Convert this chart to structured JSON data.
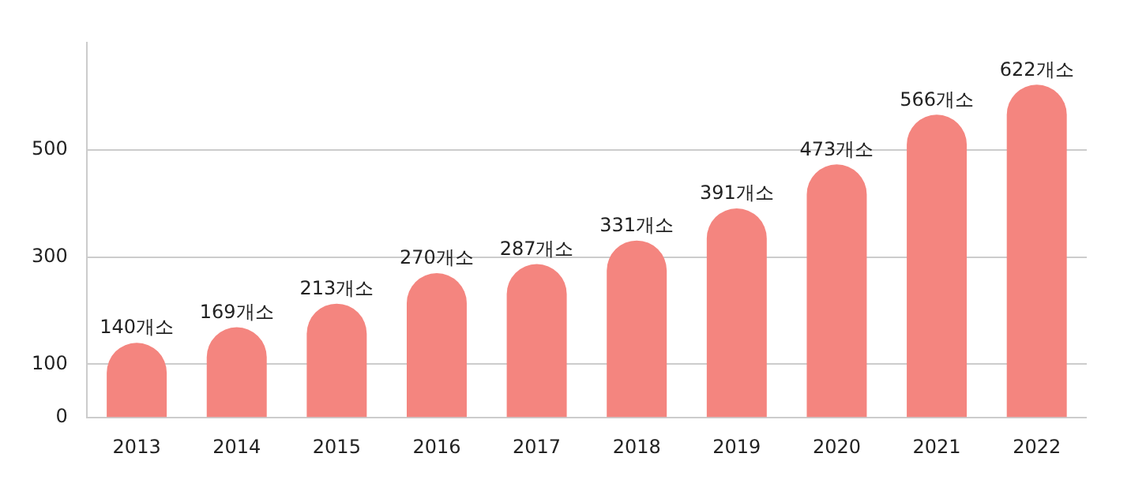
{
  "chart_data": {
    "type": "bar",
    "categories": [
      "2013",
      "2014",
      "2015",
      "2016",
      "2017",
      "2018",
      "2019",
      "2020",
      "2021",
      "2022"
    ],
    "values": [
      140,
      169,
      213,
      270,
      287,
      331,
      391,
      473,
      566,
      622
    ],
    "value_labels": [
      "140개소",
      "169개소",
      "213개소",
      "270개소",
      "287개소",
      "331개소",
      "391개소",
      "473개소",
      "566개소",
      "622개소"
    ],
    "color": "#f4857f",
    "ylim": [
      0,
      700
    ],
    "yticks": [
      0,
      100,
      300,
      500
    ],
    "grid": "y",
    "legend": false
  }
}
